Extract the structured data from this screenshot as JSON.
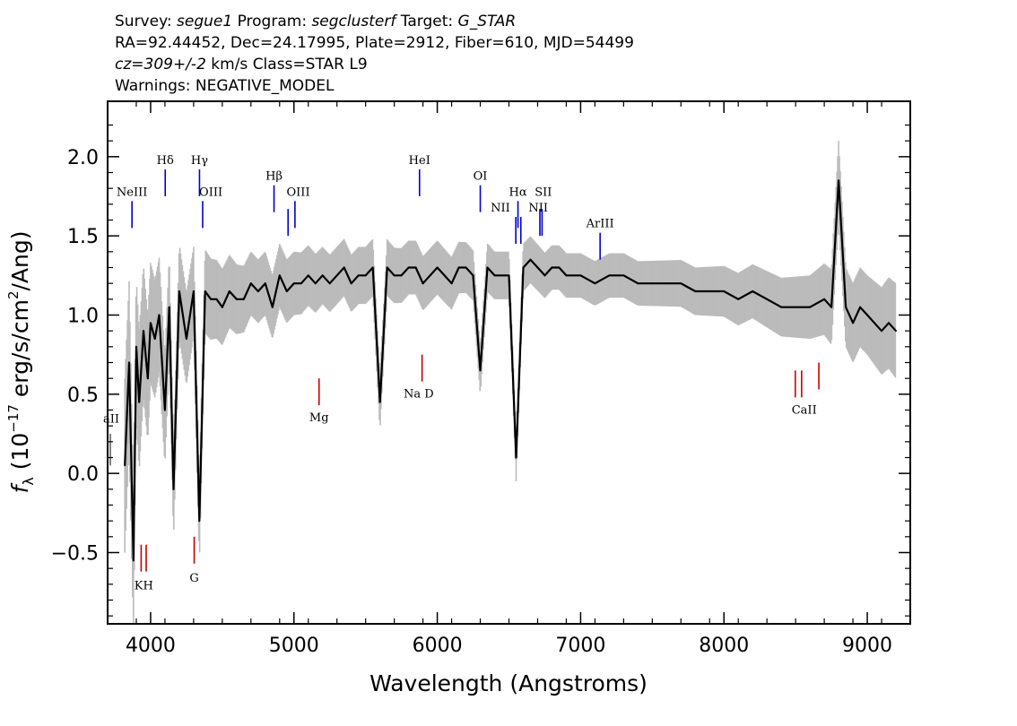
{
  "header": {
    "survey_prefix": "Survey: ",
    "survey_value": "segue1",
    "program_prefix": " Program: ",
    "program_value": "segclusterf",
    "target_prefix": " Target: ",
    "target_value": "G_STAR",
    "line2": "RA=92.44452, Dec=24.17995, Plate=2912, Fiber=610, MJD=54499",
    "cz_value": "cz=309+/-2",
    "cz_rest": " km/s Class=STAR L9",
    "line4": "Warnings: NEGATIVE_MODEL"
  },
  "chart_data": {
    "type": "line",
    "xlabel": "Wavelength (Angstroms)",
    "ylabel": "f_λ (10^-17 erg/s/cm^2/Ang)",
    "ylabel_parts": {
      "f": "f",
      "sub": "λ",
      "pre": " (10",
      "sup": "−17",
      "mid": " erg/s/cm",
      "sup2": "2",
      "post": "/Ang)"
    },
    "xlim": [
      3700,
      9300
    ],
    "ylim": [
      -0.95,
      2.35
    ],
    "xticks": [
      4000,
      5000,
      6000,
      7000,
      8000,
      9000
    ],
    "yticks": [
      -0.5,
      0.0,
      0.5,
      1.0,
      1.5,
      2.0
    ],
    "xtick_labels": [
      "4000",
      "5000",
      "6000",
      "7000",
      "8000",
      "9000"
    ],
    "ytick_labels": [
      "−0.5",
      "0.0",
      "0.5",
      "1.0",
      "1.5",
      "2.0"
    ],
    "grid": false,
    "colors": {
      "flux": "#000000",
      "noise": "#bbbbbb",
      "emission": "#0000cc",
      "absorption": "#cc0000"
    },
    "series": [
      {
        "role": "flux",
        "x": [
          3820,
          3850,
          3880,
          3900,
          3920,
          3950,
          3980,
          4000,
          4030,
          4060,
          4100,
          4130,
          4160,
          4200,
          4250,
          4300,
          4340,
          4380,
          4420,
          4460,
          4500,
          4550,
          4600,
          4650,
          4700,
          4750,
          4800,
          4850,
          4900,
          4950,
          5000,
          5050,
          5100,
          5150,
          5200,
          5250,
          5300,
          5350,
          5400,
          5450,
          5500,
          5550,
          5600,
          5650,
          5700,
          5750,
          5800,
          5850,
          5900,
          5950,
          6000,
          6050,
          6100,
          6150,
          6200,
          6250,
          6300,
          6350,
          6400,
          6450,
          6500,
          6550,
          6600,
          6650,
          6700,
          6750,
          6800,
          6850,
          6900,
          6950,
          7000,
          7100,
          7200,
          7300,
          7400,
          7500,
          7600,
          7700,
          7800,
          7900,
          8000,
          8100,
          8200,
          8300,
          8400,
          8500,
          8600,
          8700,
          8750,
          8800,
          8850,
          8900,
          8950,
          9000,
          9050,
          9100,
          9150,
          9200
        ],
        "y": [
          0.05,
          0.7,
          -0.55,
          0.8,
          0.45,
          0.9,
          0.6,
          0.95,
          0.85,
          1.0,
          0.4,
          1.05,
          -0.1,
          1.15,
          0.85,
          1.15,
          -0.3,
          1.15,
          1.1,
          1.1,
          1.05,
          1.15,
          1.1,
          1.1,
          1.2,
          1.15,
          1.2,
          1.05,
          1.25,
          1.15,
          1.2,
          1.2,
          1.25,
          1.2,
          1.25,
          1.2,
          1.25,
          1.3,
          1.2,
          1.25,
          1.25,
          1.3,
          0.45,
          1.3,
          1.25,
          1.25,
          1.3,
          1.3,
          1.2,
          1.25,
          1.3,
          1.25,
          1.2,
          1.3,
          1.3,
          1.25,
          0.65,
          1.3,
          1.25,
          1.25,
          1.25,
          0.1,
          1.3,
          1.35,
          1.3,
          1.25,
          1.3,
          1.3,
          1.25,
          1.25,
          1.25,
          1.2,
          1.25,
          1.25,
          1.2,
          1.2,
          1.2,
          1.2,
          1.15,
          1.15,
          1.15,
          1.1,
          1.15,
          1.1,
          1.05,
          1.05,
          1.05,
          1.1,
          1.05,
          1.85,
          1.05,
          0.95,
          1.05,
          1.0,
          0.95,
          0.9,
          0.95,
          0.9
        ]
      },
      {
        "role": "noise",
        "x": [
          3820,
          3900,
          4000,
          4100,
          4200,
          4300,
          4400,
          4500,
          4600,
          4700,
          4800,
          4900,
          5000,
          5200,
          5400,
          5600,
          5800,
          6000,
          6200,
          6400,
          6600,
          6800,
          7000,
          7400,
          7800,
          8200,
          8600,
          8800,
          9000,
          9200
        ],
        "y": [
          0.55,
          0.45,
          0.38,
          0.35,
          0.3,
          0.28,
          0.26,
          0.24,
          0.22,
          0.2,
          0.2,
          0.2,
          0.2,
          0.18,
          0.18,
          0.18,
          0.17,
          0.17,
          0.16,
          0.15,
          0.15,
          0.14,
          0.14,
          0.14,
          0.15,
          0.17,
          0.2,
          0.25,
          0.25,
          0.3
        ]
      }
    ],
    "emission_lines": [
      {
        "name": "NeIII",
        "x": 3870,
        "y": 1.55
      },
      {
        "name": "Hδ",
        "x": 4102,
        "y": 1.75
      },
      {
        "name": "Hγ",
        "x": 4341,
        "y": 1.75
      },
      {
        "name": "OIII",
        "x": 4363,
        "y": 1.55
      },
      {
        "name": "Hβ",
        "x": 4861,
        "y": 1.65
      },
      {
        "name": "OIII",
        "x": 4959,
        "y": 1.5
      },
      {
        "name": "OIII",
        "x": 5007,
        "y": 1.55
      },
      {
        "name": "HeI",
        "x": 5876,
        "y": 1.75
      },
      {
        "name": "OI",
        "x": 6300,
        "y": 1.65
      },
      {
        "name": "NII",
        "x": 6548,
        "y": 1.45
      },
      {
        "name": "Hα",
        "x": 6563,
        "y": 1.55
      },
      {
        "name": "NII",
        "x": 6583,
        "y": 1.45
      },
      {
        "name": "SII",
        "x": 6716,
        "y": 1.5
      },
      {
        "name": "SII",
        "x": 6731,
        "y": 1.5
      },
      {
        "name": "ArIII",
        "x": 7136,
        "y": 1.35
      }
    ],
    "emission_labels": [
      "NeIII",
      "Hδ",
      "Hγ",
      "OIII",
      "Hβ",
      "OIII",
      "HeI",
      "OI",
      "NII",
      "Hα",
      "SII",
      "NII",
      "ArIII"
    ],
    "absorption_lines": [
      {
        "name": "K",
        "x": 3934,
        "y": -0.45
      },
      {
        "name": "H",
        "x": 3969,
        "y": -0.45
      },
      {
        "name": "G",
        "x": 4304,
        "y": -0.4
      },
      {
        "name": "Mg",
        "x": 5175,
        "y": 0.6
      },
      {
        "name": "Na",
        "x": 5894,
        "y": 0.75
      },
      {
        "name": "CaII",
        "x": 8498,
        "y": 0.65
      },
      {
        "name": "CaII",
        "x": 8542,
        "y": 0.65
      },
      {
        "name": "CaII",
        "x": 8662,
        "y": 0.7
      }
    ],
    "absorption_labels": [
      "KH",
      "G",
      "Mg",
      "Na D",
      "CaII"
    ],
    "edge_label": "aII"
  }
}
